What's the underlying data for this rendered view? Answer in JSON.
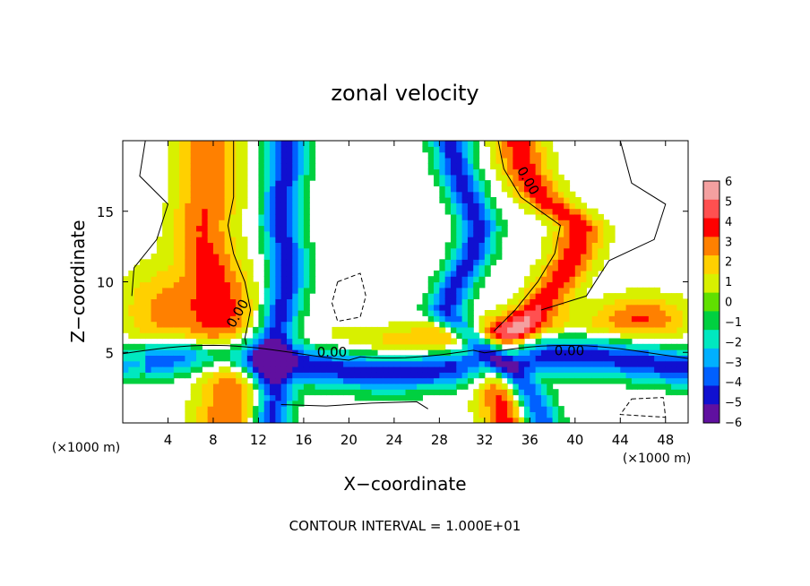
{
  "chart_data": {
    "type": "heatmap",
    "title": "zonal velocity",
    "xlabel": "X−coordinate",
    "ylabel": "Z−coordinate",
    "x_unit_left": "(×1000 m)",
    "x_unit_right": "(×1000 m)",
    "footer": "CONTOUR INTERVAL = 1.000E+01",
    "xlim": [
      0,
      50
    ],
    "ylim": [
      0,
      20
    ],
    "x_ticks": [
      4,
      8,
      12,
      16,
      20,
      24,
      28,
      32,
      36,
      40,
      44,
      48
    ],
    "y_ticks": [
      5,
      10,
      15
    ],
    "contour_labels": [
      "0.00",
      "0.00",
      "0.00",
      "0.00"
    ],
    "colorbar": {
      "ticks": [
        6,
        5,
        4,
        3,
        2,
        1,
        0,
        -1,
        -2,
        -3,
        -4,
        -5,
        -6
      ],
      "tick_labels": [
        "6",
        "5",
        "4",
        "3",
        "2",
        "1",
        "0",
        "−1",
        "−2",
        "−3",
        "−4",
        "−5",
        "−6"
      ],
      "colors": [
        "#f4a0a0",
        "#ff5050",
        "#ff0000",
        "#ff8000",
        "#ffd000",
        "#d8f000",
        "#60e000",
        "#00d040",
        "#00e8c0",
        "#00b0ff",
        "#0060ff",
        "#1010d0",
        "#6010a0"
      ]
    },
    "bands": [
      {
        "name": "left jet",
        "z": [
          0,
          2,
          4,
          6,
          8,
          10,
          12,
          14,
          16,
          18,
          20
        ],
        "x": [
          9,
          9.5,
          9,
          8.5,
          9,
          8.5,
          7.5,
          7,
          7.5,
          7.5,
          7.5
        ],
        "core": 3.5,
        "width": 5
      },
      {
        "name": "left negative",
        "z": [
          0,
          2,
          4,
          6,
          8,
          10,
          12,
          14,
          16,
          18,
          20
        ],
        "x": [
          13,
          13.5,
          13,
          13.5,
          14,
          14.5,
          14.5,
          14,
          14,
          14.5,
          14.5
        ],
        "core": -5,
        "width": 3
      },
      {
        "name": "right jet",
        "z": [
          0,
          2,
          4,
          6,
          8,
          10,
          12,
          14,
          16,
          18,
          20
        ],
        "x": [
          34,
          33.5,
          33,
          34,
          36.5,
          38.5,
          40,
          40.5,
          37,
          35.5,
          35
        ],
        "core": 4,
        "width": 4
      },
      {
        "name": "right negative",
        "z": [
          0,
          2,
          4,
          6,
          8,
          10,
          12,
          14,
          16,
          18,
          20
        ],
        "x": [
          37,
          36,
          34,
          31,
          28.5,
          29.5,
          31,
          31.5,
          30.5,
          29.5,
          29
        ],
        "core": -5,
        "width": 3
      }
    ]
  }
}
